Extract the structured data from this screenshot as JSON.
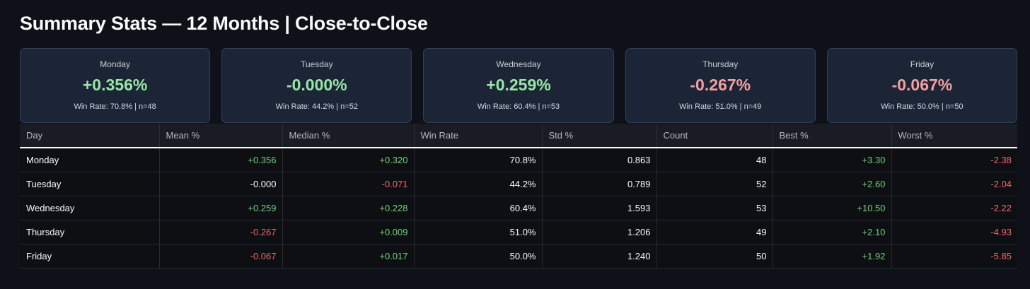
{
  "page_title": "Summary Stats — 12 Months | Close-to-Close",
  "colors": {
    "background": "#0e1117",
    "card_background": "#1c2536",
    "card_positive": "#9ae6a8",
    "card_negative": "#f2a0a0",
    "table_positive": "#6fd17a",
    "table_negative": "#f56565"
  },
  "cards": [
    {
      "day": "Monday",
      "mean": "+0.356%",
      "sign": "pos",
      "meta": "Win Rate: 70.8% | n=48"
    },
    {
      "day": "Tuesday",
      "mean": "-0.000%",
      "sign": "pos",
      "meta": "Win Rate: 44.2% | n=52"
    },
    {
      "day": "Wednesday",
      "mean": "+0.259%",
      "sign": "pos",
      "meta": "Win Rate: 60.4% | n=53"
    },
    {
      "day": "Thursday",
      "mean": "-0.267%",
      "sign": "neg",
      "meta": "Win Rate: 51.0% | n=49"
    },
    {
      "day": "Friday",
      "mean": "-0.067%",
      "sign": "neg",
      "meta": "Win Rate: 50.0% | n=50"
    }
  ],
  "table": {
    "headers": [
      "Day",
      "Mean %",
      "Median %",
      "Win Rate",
      "Std %",
      "Count",
      "Best %",
      "Worst %"
    ],
    "rows": [
      [
        "Monday",
        "+0.356",
        "+0.320",
        "70.8%",
        "0.863",
        "48",
        "+3.30",
        "-2.38"
      ],
      [
        "Tuesday",
        "-0.000",
        "-0.071",
        "44.2%",
        "0.789",
        "52",
        "+2.60",
        "-2.04"
      ],
      [
        "Wednesday",
        "+0.259",
        "+0.228",
        "60.4%",
        "1.593",
        "53",
        "+10.50",
        "-2.22"
      ],
      [
        "Thursday",
        "-0.267",
        "+0.009",
        "51.0%",
        "1.206",
        "49",
        "+2.10",
        "-4.93"
      ],
      [
        "Friday",
        "-0.067",
        "+0.017",
        "50.0%",
        "1.240",
        "50",
        "+1.92",
        "-5.85"
      ]
    ],
    "row_signs": [
      [
        "",
        "pos",
        "pos",
        "",
        "",
        "",
        "pos",
        "neg"
      ],
      [
        "",
        "",
        "neg",
        "",
        "",
        "",
        "pos",
        "neg"
      ],
      [
        "",
        "pos",
        "pos",
        "",
        "",
        "",
        "pos",
        "neg"
      ],
      [
        "",
        "neg",
        "pos",
        "",
        "",
        "",
        "pos",
        "neg"
      ],
      [
        "",
        "neg",
        "pos",
        "",
        "",
        "",
        "pos",
        "neg"
      ]
    ]
  }
}
